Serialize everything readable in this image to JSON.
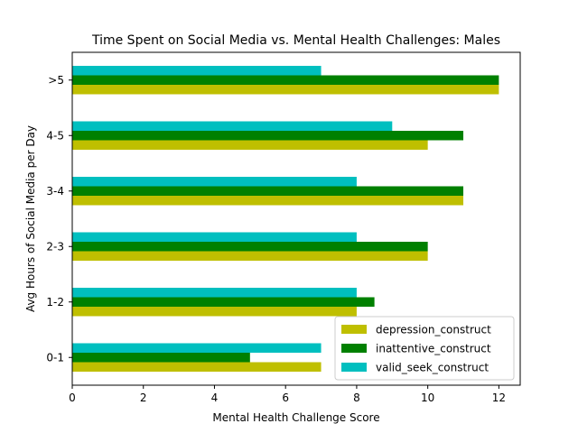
{
  "chart_data": {
    "type": "bar",
    "orientation": "horizontal",
    "title": "Time Spent on Social Media vs. Mental Health Challenges: Males",
    "xlabel": "Mental Health Challenge Score",
    "ylabel": "Avg Hours of Social Media per Day",
    "categories": [
      "0-1",
      "1-2",
      "2-3",
      "3-4",
      "4-5",
      ">5"
    ],
    "xlim": [
      0,
      12.6
    ],
    "xticks": [
      0,
      2,
      4,
      6,
      8,
      10,
      12
    ],
    "grid": false,
    "legend_position": "lower-right",
    "series": [
      {
        "name": "depression_construct",
        "color": "#bfbf00",
        "values": [
          7,
          8,
          10,
          11,
          10,
          12
        ]
      },
      {
        "name": "inattentive_construct",
        "color": "#008000",
        "values": [
          5,
          8.5,
          10,
          11,
          11,
          12
        ]
      },
      {
        "name": "valid_seek_construct",
        "color": "#00bfbf",
        "values": [
          7,
          8,
          8,
          8,
          9,
          7
        ]
      }
    ]
  }
}
